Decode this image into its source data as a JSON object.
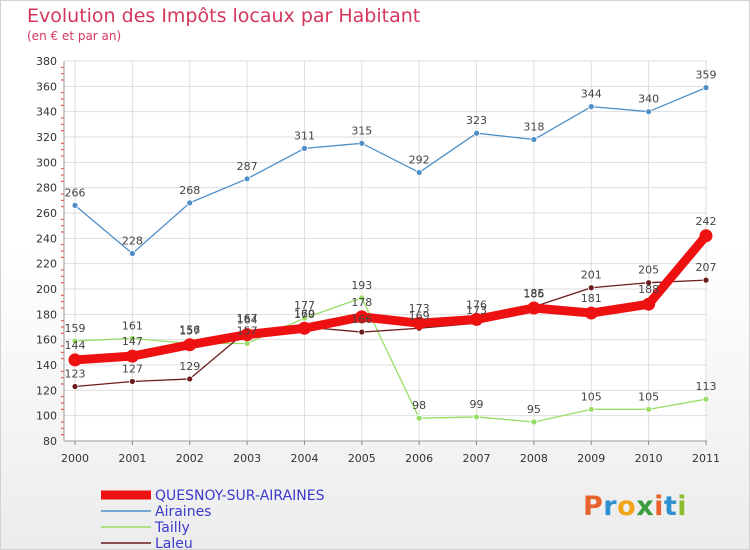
{
  "title": "Evolution des Impôts locaux par Habitant",
  "subtitle": "(en € et par an)",
  "logo": {
    "letters": [
      "P",
      "r",
      "o",
      "x",
      "i",
      "t",
      "i"
    ],
    "colors": [
      "#e8632c",
      "#2e8fd1",
      "#f2a51a",
      "#3a9e3f",
      "#e8632c",
      "#2e8fd1",
      "#8bbd2c"
    ]
  },
  "chart_data": {
    "type": "line",
    "x": [
      "2000",
      "2001",
      "2002",
      "2003",
      "2004",
      "2005",
      "2006",
      "2007",
      "2008",
      "2009",
      "2010",
      "2011"
    ],
    "ylim": [
      80,
      380
    ],
    "yticks": [
      80,
      100,
      120,
      140,
      160,
      180,
      200,
      220,
      240,
      260,
      280,
      300,
      320,
      340,
      360,
      380
    ],
    "grid": true,
    "legend_position": "bottom-left",
    "series": [
      {
        "name": "QUESNOY-SUR-AIRAINES",
        "color": "#ee1111",
        "values": [
          144,
          147,
          156,
          164,
          169,
          178,
          173,
          176,
          185,
          181,
          188,
          242
        ],
        "labels": [
          "144",
          "147",
          "156",
          "164",
          "169",
          "178",
          "173",
          "176",
          "185",
          "181",
          "188",
          "242"
        ]
      },
      {
        "name": "Airaines",
        "color": "#4e8fc8",
        "values": [
          266,
          228,
          268,
          287,
          311,
          315,
          292,
          323,
          318,
          344,
          340,
          359
        ],
        "labels": [
          "266",
          "228",
          "268",
          "287",
          "311",
          "315",
          "292",
          "323",
          "318",
          "344",
          "340",
          "359"
        ]
      },
      {
        "name": "Tailly",
        "color": "#99dd66",
        "values": [
          159,
          161,
          157,
          157,
          177,
          193,
          98,
          99,
          95,
          105,
          105,
          113
        ],
        "labels": [
          "159",
          "161",
          "157",
          "157",
          "177",
          "193",
          "98",
          "99",
          "95",
          "105",
          "105",
          "113"
        ]
      },
      {
        "name": "Laleu",
        "color": "#6b1d1d",
        "values": [
          123,
          127,
          129,
          167,
          170,
          166,
          169,
          173,
          186,
          201,
          205,
          207
        ],
        "labels": [
          "123",
          "127",
          "129",
          "167",
          "170",
          "166",
          "169",
          "173",
          "186",
          "201",
          "205",
          "207"
        ]
      }
    ]
  }
}
